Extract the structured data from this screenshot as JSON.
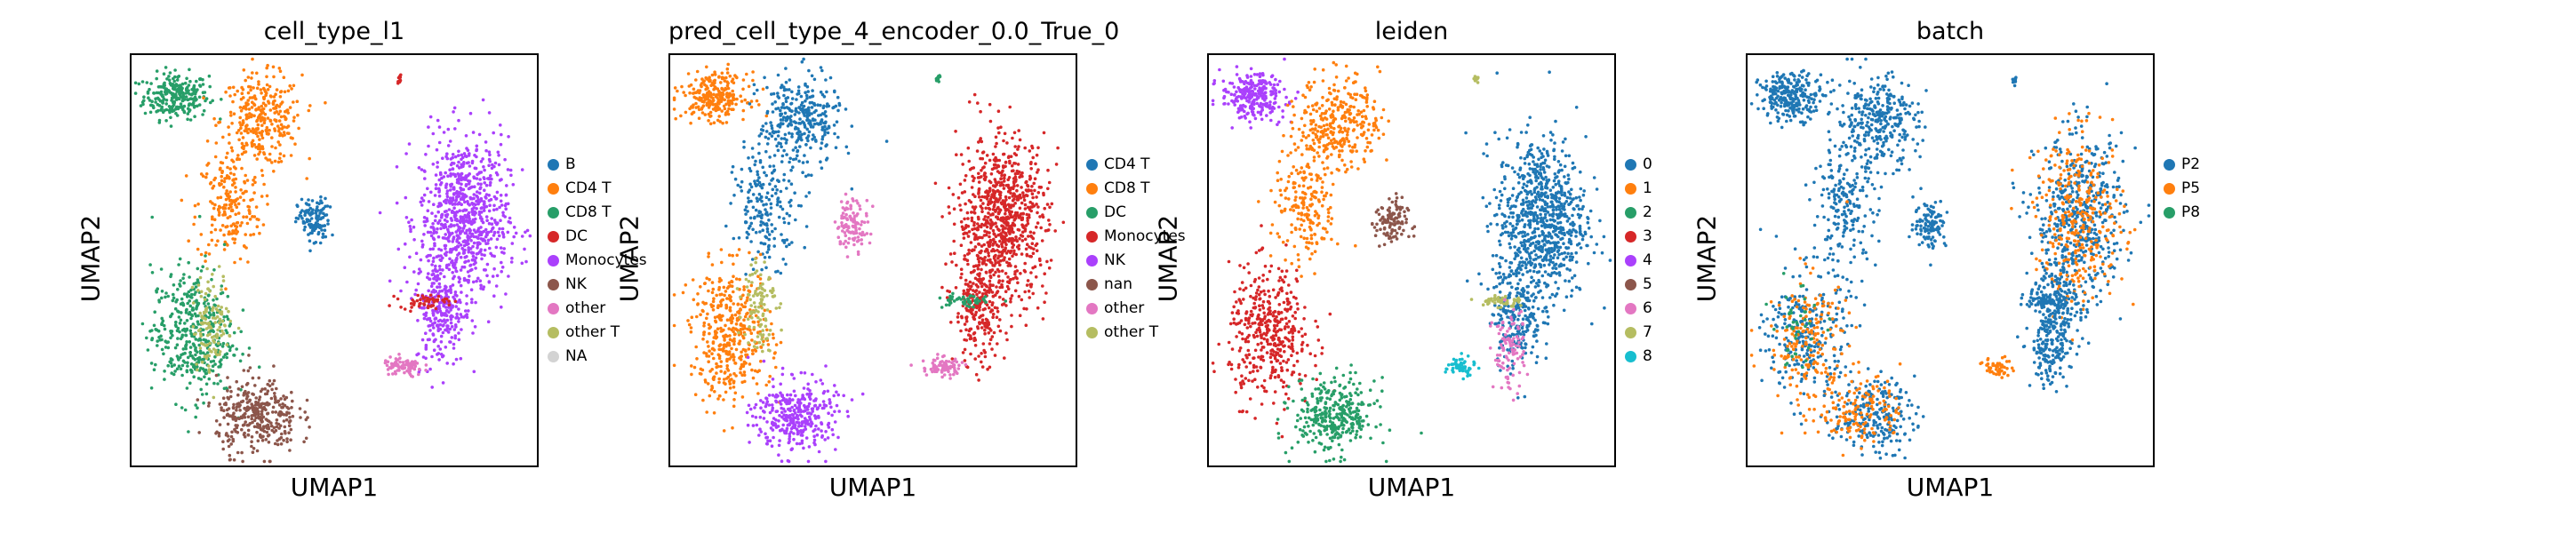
{
  "chart_data": [
    {
      "type": "scatter",
      "title": "cell_type_l1",
      "xlabel": "UMAP1",
      "ylabel": "UMAP2",
      "legend_position": "right",
      "grid": false,
      "axis_ticks": false,
      "categories": [
        {
          "name": "B",
          "color": "#1f77b4"
        },
        {
          "name": "CD4 T",
          "color": "#ff7f0e"
        },
        {
          "name": "CD8 T",
          "color": "#279e68"
        },
        {
          "name": "DC",
          "color": "#d62728"
        },
        {
          "name": "Monocytes",
          "color": "#aa40fc"
        },
        {
          "name": "NK",
          "color": "#8c564b"
        },
        {
          "name": "other",
          "color": "#e377c2"
        },
        {
          "name": "other T",
          "color": "#b5bd61"
        },
        {
          "name": "NA",
          "color": "#d3d3d3"
        }
      ],
      "clusters": [
        {
          "category": "CD8 T",
          "x": 0.11,
          "y": 0.9,
          "sx": 0.04,
          "sy": 0.028,
          "n": 260
        },
        {
          "category": "CD4 T",
          "x": 0.32,
          "y": 0.84,
          "sx": 0.05,
          "sy": 0.055,
          "n": 320
        },
        {
          "category": "CD4 T",
          "x": 0.24,
          "y": 0.63,
          "sx": 0.04,
          "sy": 0.07,
          "n": 200
        },
        {
          "category": "B",
          "x": 0.45,
          "y": 0.61,
          "sx": 0.018,
          "sy": 0.02,
          "n": 40
        },
        {
          "category": "B",
          "x": 0.45,
          "y": 0.59,
          "sx": 0.02,
          "sy": 0.03,
          "n": 80
        },
        {
          "category": "Monocytes",
          "x": 0.82,
          "y": 0.6,
          "sx": 0.055,
          "sy": 0.1,
          "n": 800
        },
        {
          "category": "Monocytes",
          "x": 0.76,
          "y": 0.38,
          "sx": 0.03,
          "sy": 0.07,
          "n": 240
        },
        {
          "category": "DC",
          "x": 0.72,
          "y": 0.4,
          "sx": 0.03,
          "sy": 0.008,
          "n": 50
        },
        {
          "category": "CD8 T",
          "x": 0.15,
          "y": 0.32,
          "sx": 0.05,
          "sy": 0.08,
          "n": 420
        },
        {
          "category": "other T",
          "x": 0.2,
          "y": 0.35,
          "sx": 0.025,
          "sy": 0.06,
          "n": 120
        },
        {
          "category": "NK",
          "x": 0.31,
          "y": 0.12,
          "sx": 0.05,
          "sy": 0.045,
          "n": 340
        },
        {
          "category": "other",
          "x": 0.67,
          "y": 0.24,
          "sx": 0.025,
          "sy": 0.012,
          "n": 80
        },
        {
          "category": "DC",
          "x": 0.66,
          "y": 0.94,
          "sx": 0.003,
          "sy": 0.006,
          "n": 10
        }
      ]
    },
    {
      "type": "scatter",
      "title": "pred_cell_type_4_encoder_0.0_True_0",
      "xlabel": "UMAP1",
      "ylabel": "UMAP2",
      "legend_position": "right",
      "grid": false,
      "axis_ticks": false,
      "categories": [
        {
          "name": "CD4 T",
          "color": "#1f77b4"
        },
        {
          "name": "CD8 T",
          "color": "#ff7f0e"
        },
        {
          "name": "DC",
          "color": "#279e68"
        },
        {
          "name": "Monocytes",
          "color": "#d62728"
        },
        {
          "name": "NK",
          "color": "#aa40fc"
        },
        {
          "name": "nan",
          "color": "#8c564b"
        },
        {
          "name": "other",
          "color": "#e377c2"
        },
        {
          "name": "other T",
          "color": "#b5bd61"
        }
      ],
      "clusters": [
        {
          "category": "CD8 T",
          "x": 0.11,
          "y": 0.9,
          "sx": 0.04,
          "sy": 0.028,
          "n": 260
        },
        {
          "category": "CD4 T",
          "x": 0.32,
          "y": 0.84,
          "sx": 0.05,
          "sy": 0.055,
          "n": 320
        },
        {
          "category": "CD4 T",
          "x": 0.24,
          "y": 0.63,
          "sx": 0.04,
          "sy": 0.07,
          "n": 200
        },
        {
          "category": "other",
          "x": 0.45,
          "y": 0.59,
          "sx": 0.02,
          "sy": 0.03,
          "n": 110
        },
        {
          "category": "Monocytes",
          "x": 0.82,
          "y": 0.6,
          "sx": 0.055,
          "sy": 0.1,
          "n": 800
        },
        {
          "category": "Monocytes",
          "x": 0.76,
          "y": 0.38,
          "sx": 0.03,
          "sy": 0.07,
          "n": 240
        },
        {
          "category": "DC",
          "x": 0.72,
          "y": 0.4,
          "sx": 0.03,
          "sy": 0.008,
          "n": 50
        },
        {
          "category": "CD8 T",
          "x": 0.15,
          "y": 0.32,
          "sx": 0.05,
          "sy": 0.08,
          "n": 420
        },
        {
          "category": "other T",
          "x": 0.22,
          "y": 0.4,
          "sx": 0.02,
          "sy": 0.06,
          "n": 100
        },
        {
          "category": "NK",
          "x": 0.31,
          "y": 0.12,
          "sx": 0.05,
          "sy": 0.045,
          "n": 340
        },
        {
          "category": "other",
          "x": 0.67,
          "y": 0.24,
          "sx": 0.025,
          "sy": 0.012,
          "n": 80
        },
        {
          "category": "DC",
          "x": 0.66,
          "y": 0.94,
          "sx": 0.003,
          "sy": 0.006,
          "n": 10
        }
      ]
    },
    {
      "type": "scatter",
      "title": "leiden",
      "xlabel": "UMAP1",
      "ylabel": "UMAP2",
      "legend_position": "right",
      "grid": false,
      "axis_ticks": false,
      "categories": [
        {
          "name": "0",
          "color": "#1f77b4"
        },
        {
          "name": "1",
          "color": "#ff7f0e"
        },
        {
          "name": "2",
          "color": "#279e68"
        },
        {
          "name": "3",
          "color": "#d62728"
        },
        {
          "name": "4",
          "color": "#aa40fc"
        },
        {
          "name": "5",
          "color": "#8c564b"
        },
        {
          "name": "6",
          "color": "#e377c2"
        },
        {
          "name": "7",
          "color": "#b5bd61"
        },
        {
          "name": "8",
          "color": "#17becf"
        }
      ],
      "clusters": [
        {
          "category": "4",
          "x": 0.11,
          "y": 0.9,
          "sx": 0.04,
          "sy": 0.028,
          "n": 260
        },
        {
          "category": "1",
          "x": 0.32,
          "y": 0.84,
          "sx": 0.05,
          "sy": 0.055,
          "n": 320
        },
        {
          "category": "1",
          "x": 0.24,
          "y": 0.63,
          "sx": 0.04,
          "sy": 0.07,
          "n": 200
        },
        {
          "category": "5",
          "x": 0.45,
          "y": 0.59,
          "sx": 0.02,
          "sy": 0.03,
          "n": 110
        },
        {
          "category": "0",
          "x": 0.82,
          "y": 0.6,
          "sx": 0.055,
          "sy": 0.1,
          "n": 800
        },
        {
          "category": "0",
          "x": 0.76,
          "y": 0.38,
          "sx": 0.03,
          "sy": 0.07,
          "n": 240
        },
        {
          "category": "7",
          "x": 0.72,
          "y": 0.4,
          "sx": 0.03,
          "sy": 0.008,
          "n": 50
        },
        {
          "category": "3",
          "x": 0.15,
          "y": 0.32,
          "sx": 0.05,
          "sy": 0.08,
          "n": 420
        },
        {
          "category": "2",
          "x": 0.31,
          "y": 0.12,
          "sx": 0.05,
          "sy": 0.045,
          "n": 340
        },
        {
          "category": "8",
          "x": 0.62,
          "y": 0.24,
          "sx": 0.018,
          "sy": 0.012,
          "n": 50
        },
        {
          "category": "6",
          "x": 0.74,
          "y": 0.28,
          "sx": 0.02,
          "sy": 0.05,
          "n": 100
        },
        {
          "category": "7",
          "x": 0.66,
          "y": 0.94,
          "sx": 0.003,
          "sy": 0.006,
          "n": 10
        }
      ]
    },
    {
      "type": "scatter",
      "title": "batch",
      "xlabel": "UMAP1",
      "ylabel": "UMAP2",
      "legend_position": "right",
      "grid": false,
      "axis_ticks": false,
      "categories": [
        {
          "name": "P2",
          "color": "#1f77b4"
        },
        {
          "name": "P5",
          "color": "#ff7f0e"
        },
        {
          "name": "P8",
          "color": "#279e68"
        }
      ],
      "clusters": [
        {
          "category": "P2",
          "x": 0.11,
          "y": 0.9,
          "sx": 0.04,
          "sy": 0.028,
          "n": 260
        },
        {
          "category": "P2",
          "x": 0.32,
          "y": 0.84,
          "sx": 0.05,
          "sy": 0.055,
          "n": 320
        },
        {
          "category": "P2",
          "x": 0.24,
          "y": 0.63,
          "sx": 0.04,
          "sy": 0.07,
          "n": 200
        },
        {
          "category": "P2",
          "x": 0.45,
          "y": 0.59,
          "sx": 0.02,
          "sy": 0.03,
          "n": 110
        },
        {
          "category": "P2",
          "x": 0.82,
          "y": 0.6,
          "sx": 0.055,
          "sy": 0.1,
          "n": 500
        },
        {
          "category": "P5",
          "x": 0.82,
          "y": 0.6,
          "sx": 0.055,
          "sy": 0.1,
          "n": 320
        },
        {
          "category": "P2",
          "x": 0.76,
          "y": 0.38,
          "sx": 0.03,
          "sy": 0.07,
          "n": 240
        },
        {
          "category": "P2",
          "x": 0.72,
          "y": 0.4,
          "sx": 0.03,
          "sy": 0.008,
          "n": 50
        },
        {
          "category": "P2",
          "x": 0.15,
          "y": 0.32,
          "sx": 0.05,
          "sy": 0.08,
          "n": 260
        },
        {
          "category": "P5",
          "x": 0.15,
          "y": 0.3,
          "sx": 0.05,
          "sy": 0.08,
          "n": 180
        },
        {
          "category": "P8",
          "x": 0.12,
          "y": 0.34,
          "sx": 0.03,
          "sy": 0.05,
          "n": 40
        },
        {
          "category": "P2",
          "x": 0.31,
          "y": 0.12,
          "sx": 0.05,
          "sy": 0.045,
          "n": 220
        },
        {
          "category": "P5",
          "x": 0.28,
          "y": 0.14,
          "sx": 0.05,
          "sy": 0.045,
          "n": 140
        },
        {
          "category": "P5",
          "x": 0.62,
          "y": 0.24,
          "sx": 0.018,
          "sy": 0.012,
          "n": 50
        },
        {
          "category": "P2",
          "x": 0.74,
          "y": 0.28,
          "sx": 0.02,
          "sy": 0.05,
          "n": 100
        },
        {
          "category": "P2",
          "x": 0.66,
          "y": 0.94,
          "sx": 0.003,
          "sy": 0.006,
          "n": 10
        }
      ]
    }
  ]
}
